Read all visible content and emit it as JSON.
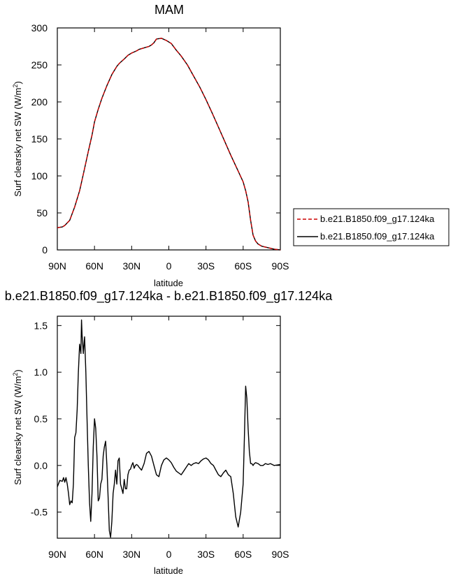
{
  "page": {
    "title": "MAM"
  },
  "chart_data": [
    {
      "type": "line",
      "title": "",
      "xlabel": "latitude",
      "ylabel": "Surf clearsky net SW (W/m",
      "ylabel_sup": "2",
      "ylabel_end": ")",
      "xlim": [
        90,
        -90
      ],
      "ylim": [
        0,
        300
      ],
      "xticks": [
        90,
        60,
        30,
        0,
        -30,
        -60,
        -90
      ],
      "xtick_labels": [
        "90N",
        "60N",
        "30N",
        "0",
        "30S",
        "60S",
        "90S"
      ],
      "yticks": [
        0,
        50,
        100,
        150,
        200,
        250,
        300
      ],
      "ytick_labels": [
        "0",
        "50",
        "100",
        "150",
        "200",
        "250",
        "300"
      ],
      "grid": false,
      "legend": {
        "position": "right"
      },
      "series": [
        {
          "name": "b.e21.B1850.f09_g17.124ka",
          "color": "#cc0000",
          "dash": "dashed",
          "x": [
            90,
            86,
            84,
            80,
            76,
            72,
            68,
            65,
            62,
            60,
            57,
            54,
            50,
            46,
            42,
            40,
            36,
            33,
            30,
            26,
            24,
            20,
            16,
            14,
            12,
            10,
            6,
            2,
            -2,
            -6,
            -10,
            -15,
            -20,
            -25,
            -30,
            -35,
            -40,
            -45,
            -50,
            -55,
            -60,
            -62,
            -64,
            -66,
            -68,
            -70,
            -72,
            -75,
            -80,
            -85,
            -90
          ],
          "y": [
            30,
            31,
            33,
            40,
            58,
            80,
            110,
            133,
            155,
            173,
            190,
            205,
            222,
            237,
            248,
            252,
            258,
            263,
            266,
            269,
            271,
            273,
            275,
            277,
            280,
            285,
            286,
            283,
            279,
            270,
            262,
            250,
            235,
            220,
            203,
            185,
            166,
            147,
            128,
            110,
            92,
            80,
            65,
            40,
            20,
            12,
            8,
            5,
            3,
            1,
            0
          ]
        },
        {
          "name": "b.e21.B1850.f09_g17.124ka",
          "color": "#000000",
          "dash": "solid",
          "x": [
            90,
            86,
            84,
            80,
            76,
            72,
            68,
            65,
            62,
            60,
            57,
            54,
            50,
            46,
            42,
            40,
            36,
            33,
            30,
            26,
            24,
            20,
            16,
            14,
            12,
            10,
            6,
            2,
            -2,
            -6,
            -10,
            -15,
            -20,
            -25,
            -30,
            -35,
            -40,
            -45,
            -50,
            -55,
            -60,
            -62,
            -64,
            -66,
            -68,
            -70,
            -72,
            -75,
            -80,
            -85,
            -90
          ],
          "y": [
            30,
            31,
            33,
            40,
            58,
            80,
            110,
            133,
            155,
            173,
            190,
            205,
            222,
            237,
            248,
            252,
            258,
            263,
            266,
            269,
            271,
            273,
            275,
            277,
            280,
            285,
            286,
            283,
            279,
            270,
            262,
            250,
            235,
            220,
            203,
            185,
            166,
            147,
            128,
            110,
            92,
            80,
            65,
            40,
            20,
            12,
            8,
            5,
            3,
            1,
            0
          ]
        }
      ]
    },
    {
      "type": "line",
      "title": "b.e21.B1850.f09_g17.124ka - b.e21.B1850.f09_g17.124ka",
      "xlabel": "latitude",
      "ylabel": "Surf clearsky net SW (W/m",
      "ylabel_sup": "2",
      "ylabel_end": ")",
      "xlim": [
        90,
        -90
      ],
      "ylim": [
        -0.78,
        1.6
      ],
      "xticks": [
        90,
        60,
        30,
        0,
        -30,
        -60,
        -90
      ],
      "xtick_labels": [
        "90N",
        "60N",
        "30N",
        "0",
        "30S",
        "60S",
        "90S"
      ],
      "yticks": [
        -0.5,
        0.0,
        0.5,
        1.0,
        1.5
      ],
      "ytick_labels": [
        "-0.5",
        "0.0",
        "0.5",
        "1.0",
        "1.5"
      ],
      "grid": false,
      "series": [
        {
          "color": "#000000",
          "dash": "solid",
          "x": [
            90,
            88,
            86,
            85,
            84,
            83,
            82,
            81,
            80,
            79,
            78,
            77,
            76,
            75,
            74,
            73,
            72,
            71,
            70.5,
            70,
            69,
            68.5,
            68,
            67,
            66,
            65,
            64,
            63,
            62,
            61,
            60,
            59,
            58,
            57,
            56,
            55,
            54,
            53,
            52,
            51,
            50,
            49,
            48,
            47,
            46,
            45,
            44,
            43,
            42,
            41,
            40,
            39,
            38,
            37,
            36,
            35,
            34,
            33,
            32,
            31,
            30,
            29,
            28,
            27,
            26,
            25,
            24,
            22,
            20,
            18,
            16,
            14,
            12,
            10,
            8,
            6,
            4,
            2,
            0,
            -2,
            -4,
            -6,
            -8,
            -10,
            -12,
            -14,
            -16,
            -18,
            -20,
            -22,
            -24,
            -26,
            -28,
            -30,
            -32,
            -34,
            -36,
            -38,
            -40,
            -42,
            -44,
            -46,
            -48,
            -50,
            -52,
            -54,
            -56,
            -58,
            -60,
            -61,
            -62,
            -63,
            -64,
            -65,
            -66,
            -67,
            -68,
            -69,
            -70,
            -72,
            -74,
            -76,
            -78,
            -80,
            -82,
            -85,
            -90
          ],
          "y": [
            -0.23,
            -0.16,
            -0.17,
            -0.13,
            -0.18,
            -0.13,
            -0.2,
            -0.3,
            -0.42,
            -0.38,
            -0.4,
            -0.2,
            0.3,
            0.35,
            0.6,
            1.0,
            1.3,
            1.2,
            1.56,
            1.4,
            1.2,
            1.3,
            1.38,
            1.0,
            0.5,
            0.0,
            -0.4,
            -0.6,
            -0.3,
            0.2,
            0.5,
            0.4,
            0.1,
            -0.38,
            -0.35,
            -0.2,
            -0.15,
            0.1,
            0.2,
            0.26,
            0.0,
            -0.35,
            -0.7,
            -0.77,
            -0.6,
            -0.3,
            -0.2,
            -0.05,
            -0.2,
            0.05,
            0.08,
            -0.2,
            -0.25,
            -0.3,
            -0.15,
            -0.25,
            -0.25,
            -0.1,
            -0.05,
            -0.04,
            0.0,
            0.03,
            -0.03,
            0.0,
            0.01,
            0.0,
            -0.02,
            -0.05,
            0.02,
            0.13,
            0.15,
            0.1,
            0.0,
            -0.1,
            -0.12,
            0.0,
            0.06,
            0.08,
            0.06,
            0.03,
            -0.02,
            -0.06,
            -0.08,
            -0.1,
            -0.06,
            -0.02,
            0.02,
            0.0,
            0.02,
            0.03,
            0.02,
            0.05,
            0.07,
            0.08,
            0.06,
            0.02,
            0.0,
            -0.05,
            -0.1,
            -0.12,
            -0.08,
            -0.05,
            -0.1,
            -0.12,
            -0.3,
            -0.55,
            -0.66,
            -0.5,
            -0.2,
            0.3,
            0.85,
            0.72,
            0.4,
            0.15,
            0.02,
            0.02,
            0.0,
            0.02,
            0.03,
            0.02,
            0.0,
            0.0,
            0.02,
            0.01,
            0.02,
            0.0,
            0.01
          ]
        }
      ]
    }
  ]
}
